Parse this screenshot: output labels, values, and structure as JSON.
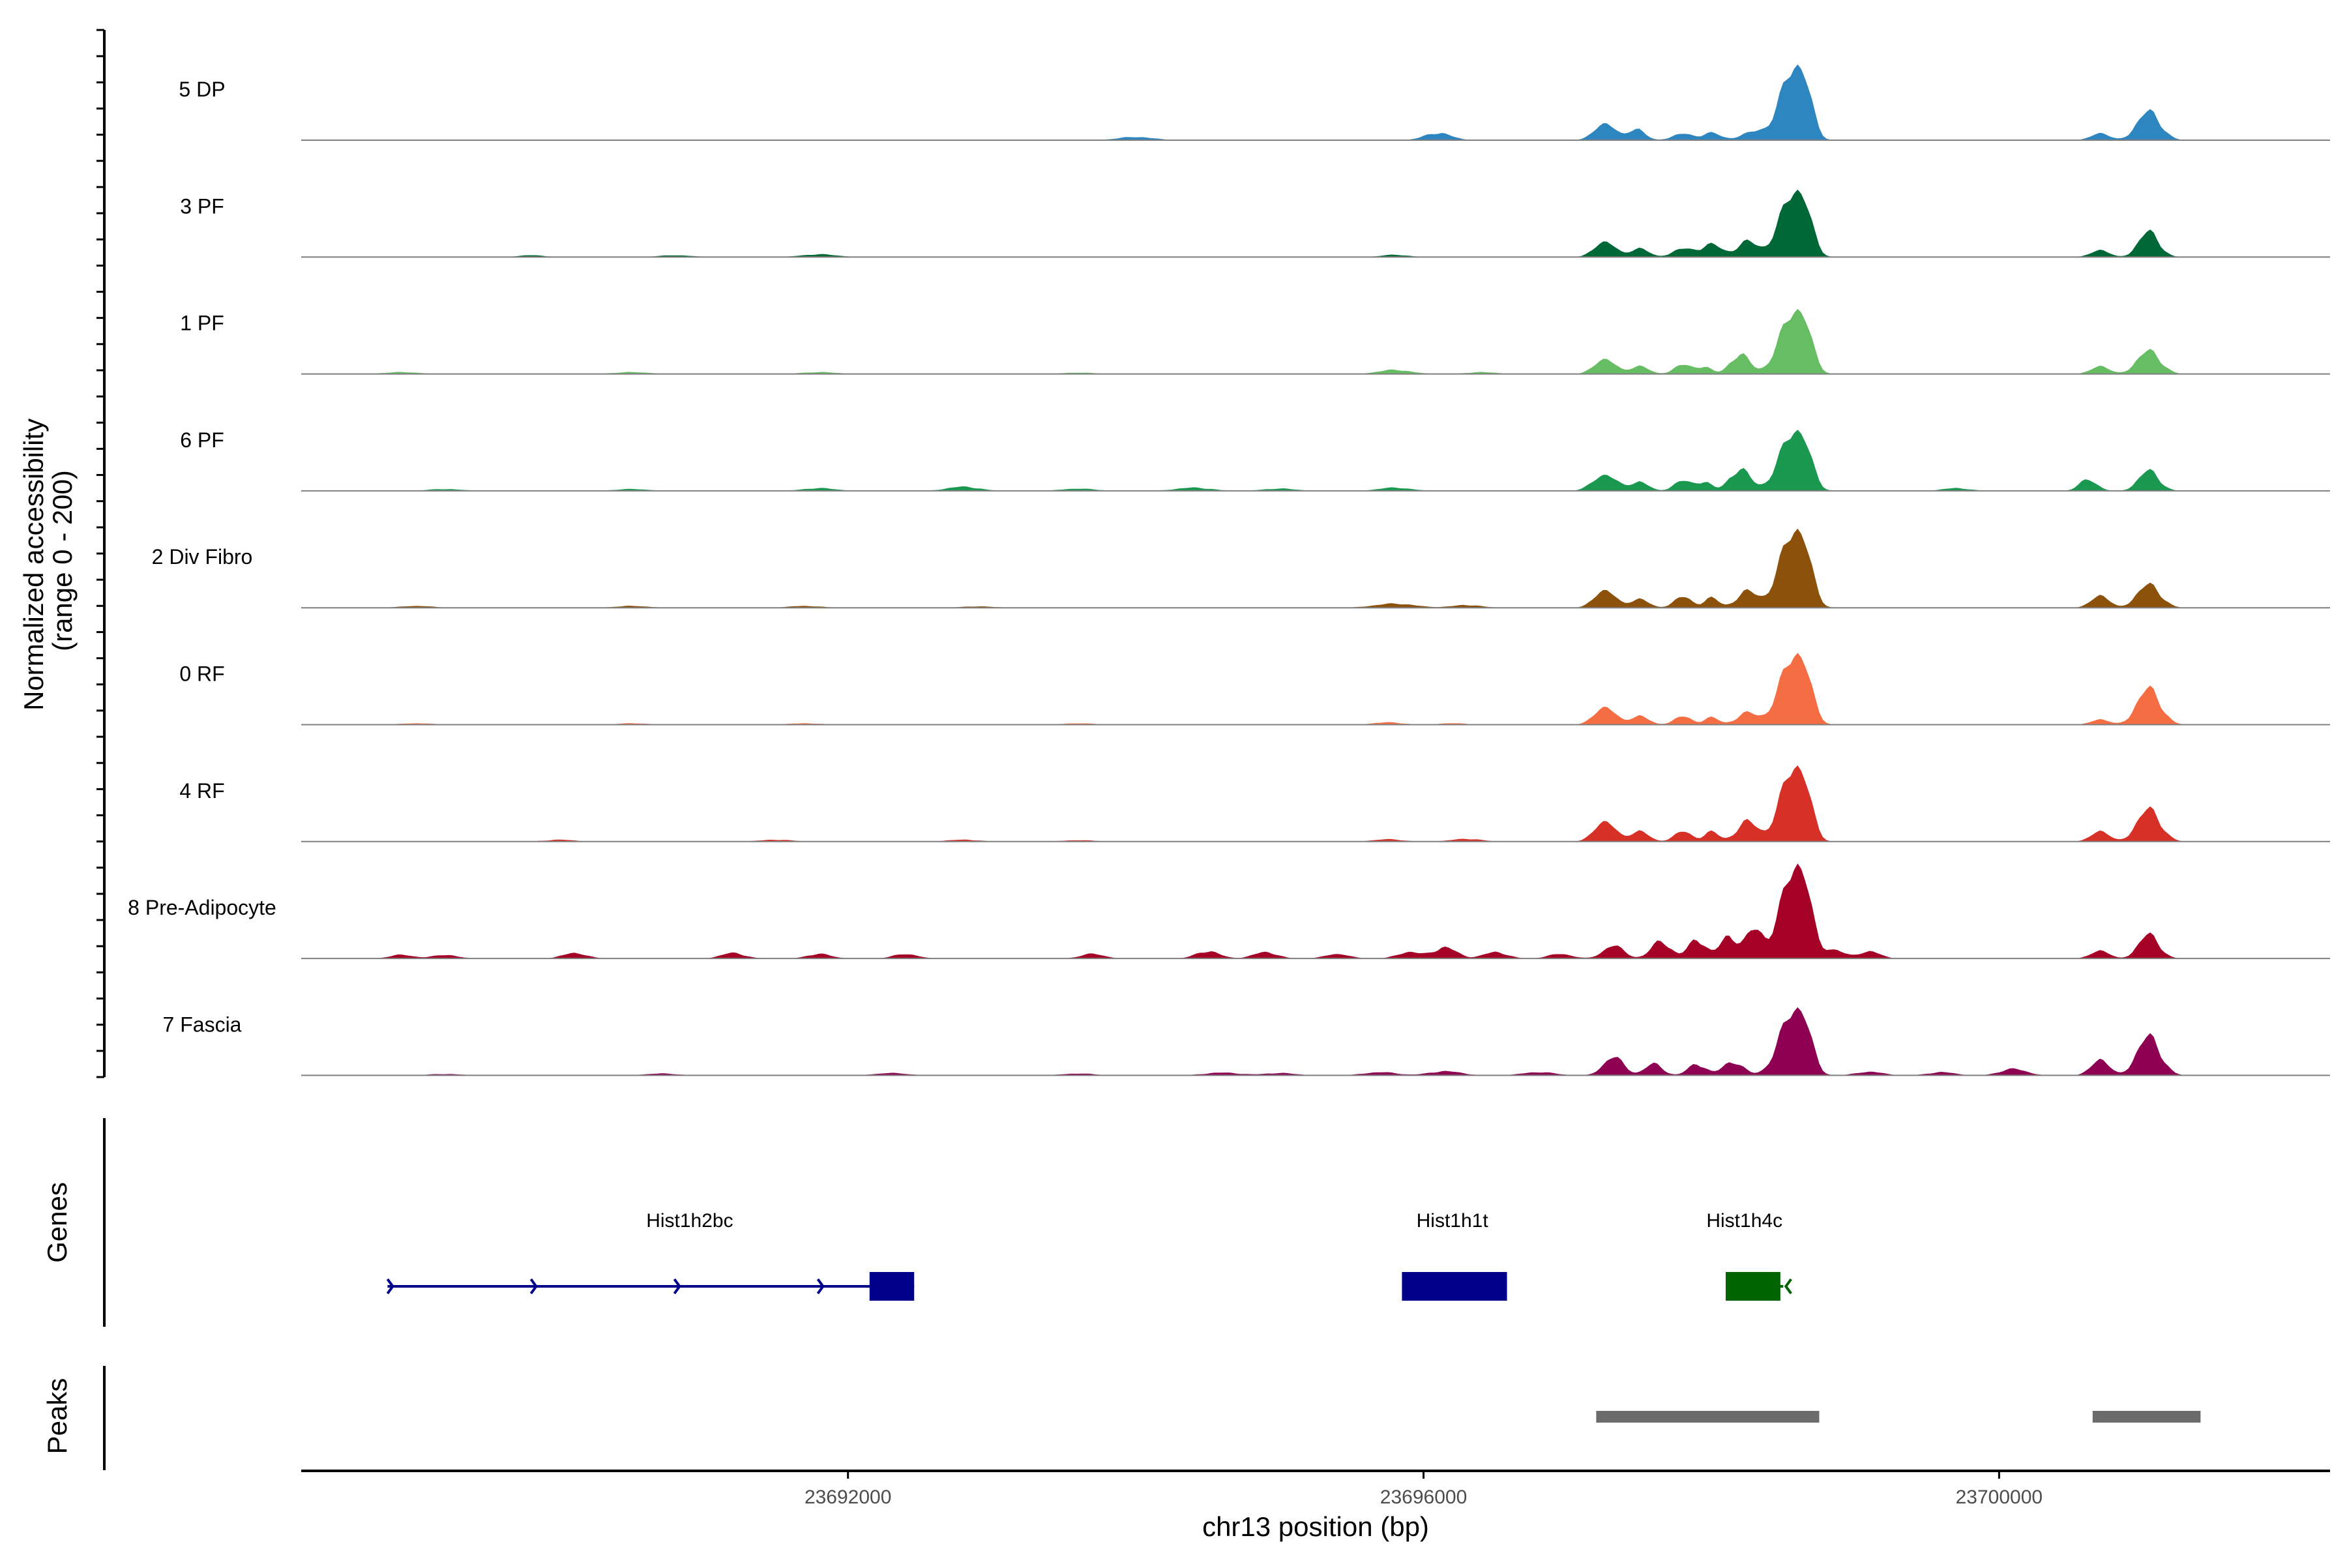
{
  "chart_data": {
    "type": "area",
    "title": "",
    "ylabel_line1": "Normalized accessibility",
    "ylabel_line2": "(range 0 - 200)",
    "ylim": [
      0,
      200
    ],
    "xlabel": "chr13 position (bp)",
    "xlim": [
      23688200,
      23702300
    ],
    "x_ticks": [
      23692000,
      23696000,
      23700000
    ],
    "x_tick_labels": [
      "23692000",
      "23696000",
      "23700000"
    ],
    "tracks": [
      {
        "name": "5 DP",
        "color": "#2e86c1",
        "peaks": [
          [
            23694000,
            7,
            120
          ],
          [
            23696100,
            16,
            90
          ],
          [
            23697260,
            38,
            70
          ],
          [
            23697480,
            26,
            55
          ],
          [
            23697800,
            14,
            70
          ],
          [
            23698000,
            16,
            60
          ],
          [
            23698300,
            18,
            90
          ],
          [
            23698550,
            130,
            85
          ],
          [
            23698650,
            85,
            55
          ],
          [
            23700700,
            16,
            60
          ],
          [
            23701040,
            62,
            80
          ]
        ]
      },
      {
        "name": "3 PF",
        "color": "#006837",
        "peaks": [
          [
            23689800,
            4,
            90
          ],
          [
            23690800,
            4,
            110
          ],
          [
            23691800,
            6,
            120
          ],
          [
            23695800,
            5,
            90
          ],
          [
            23697260,
            35,
            70
          ],
          [
            23697500,
            20,
            60
          ],
          [
            23697800,
            18,
            70
          ],
          [
            23698000,
            28,
            70
          ],
          [
            23698250,
            34,
            70
          ],
          [
            23698550,
            118,
            90
          ],
          [
            23698650,
            70,
            55
          ],
          [
            23700700,
            16,
            60
          ],
          [
            23701040,
            55,
            70
          ]
        ]
      },
      {
        "name": "1 PF",
        "color": "#66bd63",
        "peaks": [
          [
            23688900,
            4,
            120
          ],
          [
            23690500,
            4,
            120
          ],
          [
            23691800,
            4,
            120
          ],
          [
            23693600,
            3,
            110
          ],
          [
            23695800,
            9,
            110
          ],
          [
            23696400,
            4,
            100
          ],
          [
            23697260,
            34,
            70
          ],
          [
            23697500,
            18,
            60
          ],
          [
            23697800,
            20,
            60
          ],
          [
            23697950,
            16,
            50
          ],
          [
            23698200,
            44,
            65
          ],
          [
            23698550,
            112,
            90
          ],
          [
            23698650,
            70,
            55
          ],
          [
            23700700,
            18,
            60
          ],
          [
            23701040,
            50,
            80
          ]
        ]
      },
      {
        "name": "6 PF",
        "color": "#1a9850",
        "peaks": [
          [
            23689200,
            4,
            110
          ],
          [
            23690500,
            4,
            110
          ],
          [
            23691800,
            6,
            110
          ],
          [
            23692800,
            9,
            110
          ],
          [
            23693600,
            5,
            110
          ],
          [
            23694400,
            7,
            120
          ],
          [
            23695000,
            5,
            110
          ],
          [
            23695800,
            7,
            110
          ],
          [
            23697260,
            36,
            80
          ],
          [
            23697500,
            20,
            60
          ],
          [
            23697800,
            22,
            60
          ],
          [
            23697950,
            20,
            50
          ],
          [
            23698200,
            48,
            70
          ],
          [
            23698550,
            108,
            90
          ],
          [
            23698650,
            62,
            55
          ],
          [
            23699700,
            6,
            90
          ],
          [
            23700620,
            25,
            60
          ],
          [
            23701040,
            44,
            70
          ]
        ]
      },
      {
        "name": "2 Div Fibro",
        "color": "#8c510a",
        "peaks": [
          [
            23689000,
            4,
            110
          ],
          [
            23690500,
            4,
            110
          ],
          [
            23691700,
            4,
            110
          ],
          [
            23692900,
            3,
            110
          ],
          [
            23695800,
            9,
            140
          ],
          [
            23696300,
            6,
            100
          ],
          [
            23697260,
            40,
            70
          ],
          [
            23697500,
            20,
            60
          ],
          [
            23697800,
            24,
            60
          ],
          [
            23698000,
            22,
            50
          ],
          [
            23698250,
            36,
            70
          ],
          [
            23698550,
            140,
            90
          ],
          [
            23698650,
            80,
            55
          ],
          [
            23700700,
            28,
            60
          ],
          [
            23701040,
            50,
            80
          ]
        ]
      },
      {
        "name": "0 RF",
        "color": "#f46d43",
        "peaks": [
          [
            23689000,
            3,
            110
          ],
          [
            23690500,
            3,
            110
          ],
          [
            23691700,
            3,
            110
          ],
          [
            23693600,
            3,
            110
          ],
          [
            23695750,
            5,
            100
          ],
          [
            23696200,
            3,
            100
          ],
          [
            23697260,
            40,
            70
          ],
          [
            23697500,
            20,
            60
          ],
          [
            23697800,
            18,
            60
          ],
          [
            23698000,
            16,
            50
          ],
          [
            23698250,
            26,
            70
          ],
          [
            23698550,
            125,
            90
          ],
          [
            23698650,
            75,
            55
          ],
          [
            23700700,
            12,
            60
          ],
          [
            23701040,
            78,
            80
          ]
        ]
      },
      {
        "name": "4 RF",
        "color": "#d73027",
        "peaks": [
          [
            23690000,
            4,
            100
          ],
          [
            23691500,
            4,
            110
          ],
          [
            23692800,
            4,
            110
          ],
          [
            23693600,
            3,
            110
          ],
          [
            23695750,
            5,
            100
          ],
          [
            23696300,
            6,
            100
          ],
          [
            23697260,
            46,
            70
          ],
          [
            23697500,
            24,
            60
          ],
          [
            23697800,
            22,
            60
          ],
          [
            23698000,
            22,
            50
          ],
          [
            23698250,
            44,
            70
          ],
          [
            23698550,
            135,
            85
          ],
          [
            23698650,
            80,
            55
          ],
          [
            23700700,
            24,
            60
          ],
          [
            23701040,
            70,
            80
          ]
        ]
      },
      {
        "name": "8 Pre-Adipocyte",
        "color": "#a50026",
        "peaks": [
          [
            23688900,
            8,
            80
          ],
          [
            23689200,
            8,
            80
          ],
          [
            23690100,
            12,
            80
          ],
          [
            23691200,
            12,
            80
          ],
          [
            23691800,
            10,
            80
          ],
          [
            23692400,
            10,
            80
          ],
          [
            23693700,
            10,
            80
          ],
          [
            23694500,
            16,
            80
          ],
          [
            23694900,
            14,
            80
          ],
          [
            23695400,
            10,
            80
          ],
          [
            23695900,
            14,
            80
          ],
          [
            23696150,
            24,
            80
          ],
          [
            23696500,
            14,
            80
          ],
          [
            23696950,
            10,
            80
          ],
          [
            23697320,
            28,
            70
          ],
          [
            23697650,
            38,
            65
          ],
          [
            23697900,
            42,
            60
          ],
          [
            23698120,
            48,
            60
          ],
          [
            23698300,
            62,
            60
          ],
          [
            23698550,
            160,
            85
          ],
          [
            23698650,
            110,
            55
          ],
          [
            23698850,
            20,
            70
          ],
          [
            23699100,
            16,
            70
          ],
          [
            23700700,
            18,
            60
          ],
          [
            23701040,
            52,
            70
          ]
        ]
      },
      {
        "name": "7 Fascia",
        "color": "#8e0152",
        "peaks": [
          [
            23689200,
            3,
            110
          ],
          [
            23690700,
            4,
            110
          ],
          [
            23692300,
            5,
            110
          ],
          [
            23693600,
            4,
            110
          ],
          [
            23694600,
            6,
            120
          ],
          [
            23695000,
            5,
            110
          ],
          [
            23695700,
            7,
            110
          ],
          [
            23696150,
            9,
            110
          ],
          [
            23696800,
            7,
            110
          ],
          [
            23697320,
            40,
            70
          ],
          [
            23697600,
            25,
            60
          ],
          [
            23697900,
            25,
            60
          ],
          [
            23698150,
            30,
            70
          ],
          [
            23698550,
            118,
            90
          ],
          [
            23698650,
            72,
            55
          ],
          [
            23699100,
            8,
            90
          ],
          [
            23699600,
            7,
            90
          ],
          [
            23700100,
            14,
            90
          ],
          [
            23700700,
            36,
            60
          ],
          [
            23701040,
            84,
            80
          ]
        ]
      }
    ],
    "genes": [
      {
        "name": "Hist1h2bc",
        "start": 23688800,
        "end": 23692460,
        "exon_start": 23692150,
        "exon_end": 23692460,
        "strand": "+",
        "color": "#00008b",
        "label_x": 23690900
      },
      {
        "name": "Hist1h1t",
        "start": 23695850,
        "end": 23696580,
        "exon_start": 23695850,
        "exon_end": 23696580,
        "strand": "+",
        "color": "#00008b",
        "label_x": 23696200
      },
      {
        "name": "Hist1h4c",
        "start": 23698100,
        "end": 23698500,
        "exon_start": 23698100,
        "exon_end": 23698480,
        "strand": "-",
        "color": "#006400",
        "label_x": 23698230
      }
    ],
    "gene_track_label": "Genes",
    "peaks_track_label": "Peaks",
    "peak_regions": [
      [
        23697200,
        23698750
      ],
      [
        23700650,
        23701400
      ]
    ],
    "peak_color": "#6b6b6b",
    "axis_color": "#000000",
    "baseline_color": "#7f7f7f"
  }
}
